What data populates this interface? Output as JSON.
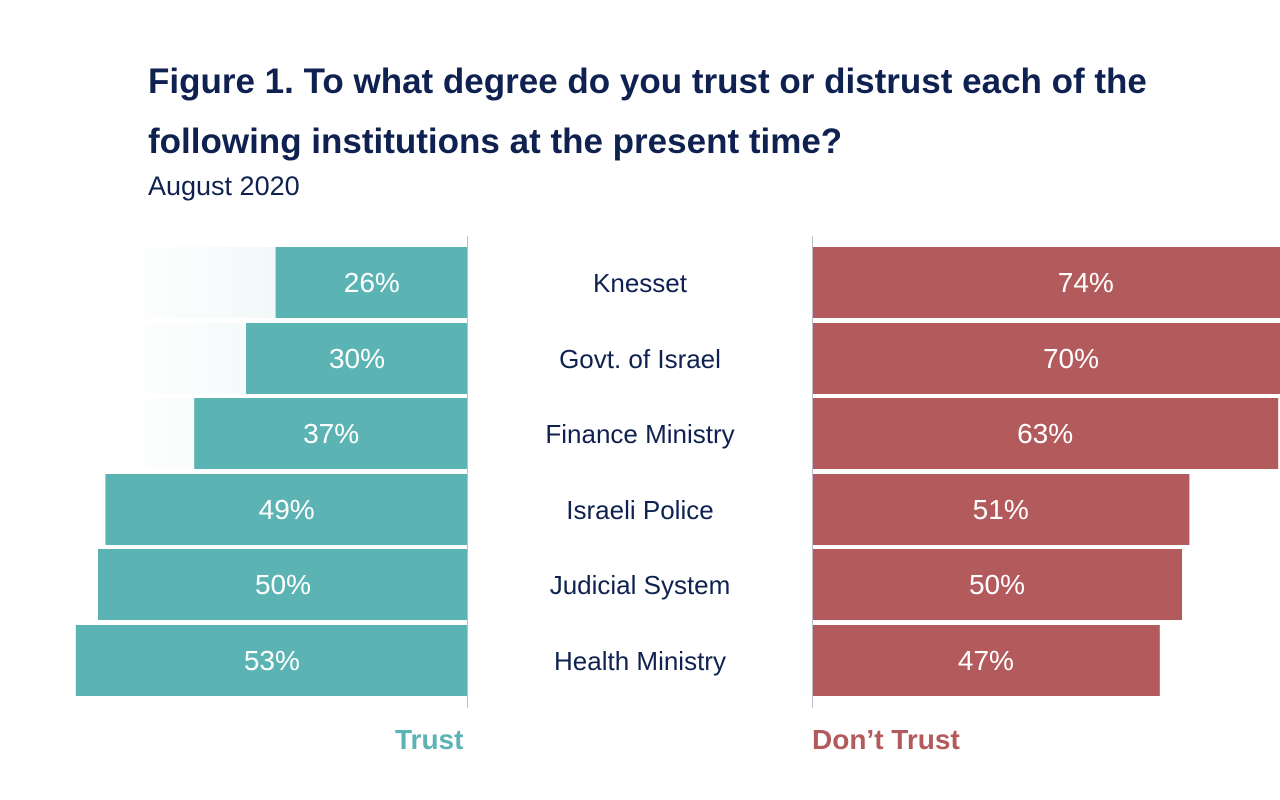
{
  "title": "Figure 1. To what degree do you trust or distrust each of the following institutions at the present time?",
  "subtitle": "August 2020",
  "colors": {
    "trust": "#5cb3b4",
    "distrust": "#b35a5c",
    "text": "#0f2150"
  },
  "legend": {
    "trust": "Trust",
    "distrust": "Don’t Trust"
  },
  "chart_data": {
    "type": "bar",
    "orientation": "horizontal",
    "layout": "diverging",
    "categories": [
      "Knesset",
      "Govt. of Israel",
      "Finance Ministry",
      "Israeli Police",
      "Judicial System",
      "Health Ministry"
    ],
    "series": [
      {
        "name": "Trust",
        "values": [
          26,
          30,
          37,
          49,
          50,
          53
        ],
        "labels": [
          "26%",
          "30%",
          "37%",
          "49%",
          "50%",
          "53%"
        ]
      },
      {
        "name": "Don’t Trust",
        "values": [
          74,
          70,
          63,
          51,
          50,
          47
        ],
        "labels": [
          "74%",
          "70%",
          "63%",
          "51%",
          "50%",
          "47%"
        ]
      }
    ],
    "unit": "%",
    "grid": false,
    "legend_position": "bottom"
  }
}
